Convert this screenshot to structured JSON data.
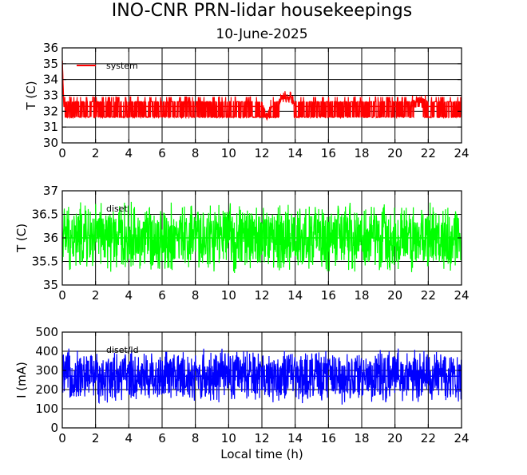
{
  "figure": {
    "title": "INO-CNR PRN-lidar housekeepings",
    "subtitle": "10-June-2025",
    "xlabel": "Local time (h)"
  },
  "chart_data": [
    {
      "type": "line",
      "panel": "top",
      "xlabel": "",
      "ylabel": "T (C)",
      "xlim": [
        0,
        24
      ],
      "ylim": [
        30,
        36
      ],
      "xticks": [
        0,
        2,
        4,
        6,
        8,
        10,
        12,
        14,
        16,
        18,
        20,
        22,
        24
      ],
      "yticks": [
        30,
        31,
        32,
        33,
        34,
        35,
        36
      ],
      "grid": true,
      "legend_position": "top-left",
      "color": "#ff0000",
      "series": [
        {
          "name": "system",
          "x": [
            0,
            0.05,
            0.1,
            0.5,
            1,
            2,
            3,
            4,
            5,
            6,
            7,
            8,
            9,
            10,
            11,
            12,
            12.3,
            12.6,
            13,
            13.2,
            13.5,
            13.8,
            14,
            15,
            16,
            17,
            18,
            19,
            20,
            21,
            21.2,
            21.5,
            22,
            23,
            24
          ],
          "y": [
            35.2,
            33.5,
            32.3,
            32.3,
            32.3,
            32.3,
            32.3,
            32.3,
            32.3,
            32.3,
            32.3,
            32.3,
            32.3,
            32.3,
            32.3,
            32.3,
            31.5,
            32.3,
            32.3,
            32.9,
            32.9,
            32.9,
            32.3,
            32.3,
            32.3,
            32.3,
            32.3,
            32.3,
            32.3,
            32.3,
            32.6,
            32.6,
            32.3,
            32.3,
            32.3
          ],
          "range_low": 31.6,
          "range_high": 33.0
        }
      ]
    },
    {
      "type": "line",
      "panel": "middle",
      "xlabel": "",
      "ylabel": "T (C)",
      "xlim": [
        0,
        24
      ],
      "ylim": [
        35,
        37
      ],
      "xticks": [
        0,
        2,
        4,
        6,
        8,
        10,
        12,
        14,
        16,
        18,
        20,
        22,
        24
      ],
      "yticks": [
        35,
        35.5,
        36,
        36.5,
        37
      ],
      "grid": true,
      "legend_position": "top-left",
      "color": "#00ff00",
      "series": [
        {
          "name": "diset",
          "x": [
            0,
            4,
            8,
            12,
            16,
            20,
            24
          ],
          "y": [
            36.0,
            36.0,
            36.0,
            36.0,
            36.0,
            36.0,
            36.0
          ],
          "range_low": 35.2,
          "range_high": 36.8
        }
      ]
    },
    {
      "type": "line",
      "panel": "bottom",
      "xlabel": "Local time (h)",
      "ylabel": "I (mA)",
      "xlim": [
        0,
        24
      ],
      "ylim": [
        0,
        500
      ],
      "xticks": [
        0,
        2,
        4,
        6,
        8,
        10,
        12,
        14,
        16,
        18,
        20,
        22,
        24
      ],
      "yticks": [
        0,
        100,
        200,
        300,
        400,
        500
      ],
      "grid": true,
      "legend_position": "top-left",
      "color": "#0000ff",
      "series": [
        {
          "name": "diset/ld",
          "x": [
            0,
            4,
            8,
            12,
            16,
            20,
            24
          ],
          "y": [
            270,
            270,
            270,
            270,
            270,
            270,
            270
          ],
          "range_low": 120,
          "range_high": 420
        }
      ]
    }
  ]
}
